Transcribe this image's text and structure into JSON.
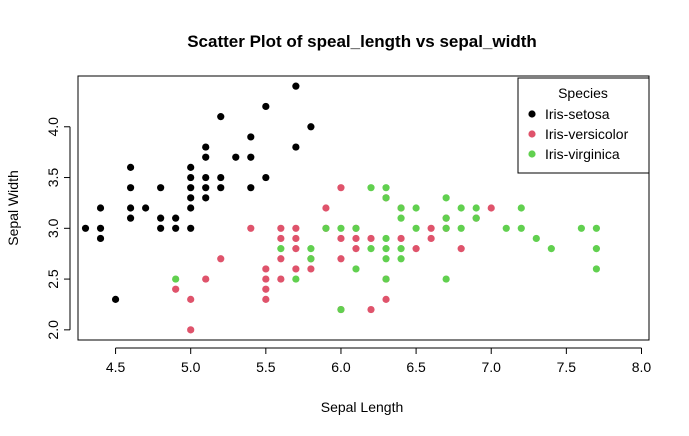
{
  "chart_data": {
    "type": "scatter",
    "title": "Scatter Plot of speal_length vs sepal_width",
    "xlabel": "Sepal Length",
    "ylabel": "Sepal Width",
    "xlim": [
      4.25,
      8.05
    ],
    "ylim": [
      1.9,
      4.5
    ],
    "x_ticks": [
      "4.5",
      "5.0",
      "5.5",
      "6.0",
      "6.5",
      "7.0",
      "7.5",
      "8.0"
    ],
    "y_ticks": [
      "2.0",
      "2.5",
      "3.0",
      "3.5",
      "4.0"
    ],
    "grid": false,
    "legend": {
      "title": "Species",
      "placement": "top-right"
    },
    "series": [
      {
        "name": "Iris-setosa",
        "color": "#000000",
        "points": [
          [
            4.3,
            3.0
          ],
          [
            4.4,
            2.9
          ],
          [
            4.4,
            3.0
          ],
          [
            4.4,
            3.2
          ],
          [
            4.5,
            2.3
          ],
          [
            4.6,
            3.1
          ],
          [
            4.6,
            3.2
          ],
          [
            4.6,
            3.4
          ],
          [
            4.6,
            3.6
          ],
          [
            4.7,
            3.2
          ],
          [
            4.8,
            3.0
          ],
          [
            4.8,
            3.1
          ],
          [
            4.8,
            3.4
          ],
          [
            4.9,
            3.0
          ],
          [
            4.9,
            3.1
          ],
          [
            5.0,
            3.0
          ],
          [
            5.0,
            3.2
          ],
          [
            5.0,
            3.3
          ],
          [
            5.0,
            3.4
          ],
          [
            5.0,
            3.5
          ],
          [
            5.0,
            3.6
          ],
          [
            5.1,
            3.3
          ],
          [
            5.1,
            3.4
          ],
          [
            5.1,
            3.5
          ],
          [
            5.1,
            3.7
          ],
          [
            5.1,
            3.8
          ],
          [
            5.2,
            3.4
          ],
          [
            5.2,
            3.5
          ],
          [
            5.2,
            4.1
          ],
          [
            5.3,
            3.7
          ],
          [
            5.4,
            3.4
          ],
          [
            5.4,
            3.7
          ],
          [
            5.4,
            3.9
          ],
          [
            5.5,
            3.5
          ],
          [
            5.5,
            4.2
          ],
          [
            5.7,
            3.8
          ],
          [
            5.7,
            4.4
          ],
          [
            5.8,
            4.0
          ]
        ]
      },
      {
        "name": "Iris-versicolor",
        "color": "#df536b",
        "points": [
          [
            4.9,
            2.4
          ],
          [
            5.0,
            2.0
          ],
          [
            5.0,
            2.3
          ],
          [
            5.1,
            2.5
          ],
          [
            5.2,
            2.7
          ],
          [
            5.4,
            3.0
          ],
          [
            5.5,
            2.3
          ],
          [
            5.5,
            2.4
          ],
          [
            5.5,
            2.5
          ],
          [
            5.5,
            2.6
          ],
          [
            5.6,
            2.5
          ],
          [
            5.6,
            2.7
          ],
          [
            5.6,
            2.9
          ],
          [
            5.6,
            3.0
          ],
          [
            5.7,
            2.6
          ],
          [
            5.7,
            2.8
          ],
          [
            5.7,
            2.9
          ],
          [
            5.7,
            3.0
          ],
          [
            5.8,
            2.6
          ],
          [
            5.8,
            2.7
          ],
          [
            5.9,
            3.0
          ],
          [
            5.9,
            3.2
          ],
          [
            6.0,
            2.2
          ],
          [
            6.0,
            2.7
          ],
          [
            6.0,
            2.9
          ],
          [
            6.0,
            3.4
          ],
          [
            6.1,
            2.8
          ],
          [
            6.1,
            2.9
          ],
          [
            6.1,
            3.0
          ],
          [
            6.2,
            2.2
          ],
          [
            6.2,
            2.9
          ],
          [
            6.3,
            2.3
          ],
          [
            6.3,
            2.5
          ],
          [
            6.3,
            3.3
          ],
          [
            6.4,
            2.9
          ],
          [
            6.4,
            3.2
          ],
          [
            6.5,
            2.8
          ],
          [
            6.6,
            2.9
          ],
          [
            6.6,
            3.0
          ],
          [
            6.7,
            3.0
          ],
          [
            6.7,
            3.1
          ],
          [
            6.8,
            2.8
          ],
          [
            6.9,
            3.1
          ],
          [
            7.0,
            3.2
          ]
        ]
      },
      {
        "name": "Iris-virginica",
        "color": "#61d04f",
        "points": [
          [
            4.9,
            2.5
          ],
          [
            5.6,
            2.8
          ],
          [
            5.7,
            2.5
          ],
          [
            5.8,
            2.7
          ],
          [
            5.8,
            2.8
          ],
          [
            5.9,
            3.0
          ],
          [
            6.0,
            2.2
          ],
          [
            6.0,
            3.0
          ],
          [
            6.1,
            2.6
          ],
          [
            6.1,
            3.0
          ],
          [
            6.2,
            2.8
          ],
          [
            6.2,
            3.4
          ],
          [
            6.3,
            2.5
          ],
          [
            6.3,
            2.7
          ],
          [
            6.3,
            2.8
          ],
          [
            6.3,
            2.9
          ],
          [
            6.3,
            3.3
          ],
          [
            6.3,
            3.4
          ],
          [
            6.4,
            2.7
          ],
          [
            6.4,
            2.8
          ],
          [
            6.4,
            3.1
          ],
          [
            6.4,
            3.2
          ],
          [
            6.5,
            3.0
          ],
          [
            6.5,
            3.2
          ],
          [
            6.7,
            2.5
          ],
          [
            6.7,
            3.0
          ],
          [
            6.7,
            3.1
          ],
          [
            6.7,
            3.3
          ],
          [
            6.8,
            3.0
          ],
          [
            6.8,
            3.2
          ],
          [
            6.9,
            3.1
          ],
          [
            6.9,
            3.2
          ],
          [
            7.1,
            3.0
          ],
          [
            7.2,
            3.0
          ],
          [
            7.2,
            3.2
          ],
          [
            7.2,
            3.6
          ],
          [
            7.3,
            2.9
          ],
          [
            7.4,
            2.8
          ],
          [
            7.6,
            3.0
          ],
          [
            7.7,
            2.6
          ],
          [
            7.7,
            2.8
          ],
          [
            7.7,
            3.0
          ],
          [
            7.7,
            3.8
          ],
          [
            7.9,
            3.8
          ]
        ]
      }
    ]
  }
}
